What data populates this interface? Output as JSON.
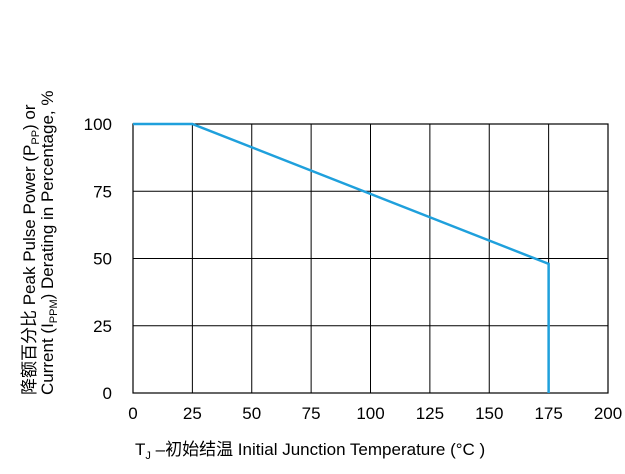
{
  "chart_data": {
    "type": "line",
    "x": [
      0,
      25,
      175,
      175
    ],
    "series": [
      {
        "values": [
          100,
          100,
          48,
          0
        ],
        "color": "#1fa0dc"
      }
    ],
    "xlim": [
      0,
      200
    ],
    "ylim": [
      0,
      100
    ],
    "xticks": [
      "0",
      "25",
      "50",
      "75",
      "100",
      "125",
      "150",
      "175",
      "200"
    ],
    "yticks": [
      "0",
      "25",
      "50",
      "75",
      "100"
    ],
    "grid": true,
    "grid_color": "#000000",
    "xlabel": {
      "prefix": "T",
      "subscript": "J",
      "text": " –初始结温 Initial Junction Temperature (°C )"
    },
    "ylabel": {
      "line1": {
        "text1": "降额百分比    Peak  Pulse  Power  (P",
        "subscript": "PP",
        "text2": ")  or"
      },
      "line2": {
        "text1": "Current (I",
        "subscript": "PPM",
        "text2": ") Derating in Percentage, %"
      }
    }
  }
}
